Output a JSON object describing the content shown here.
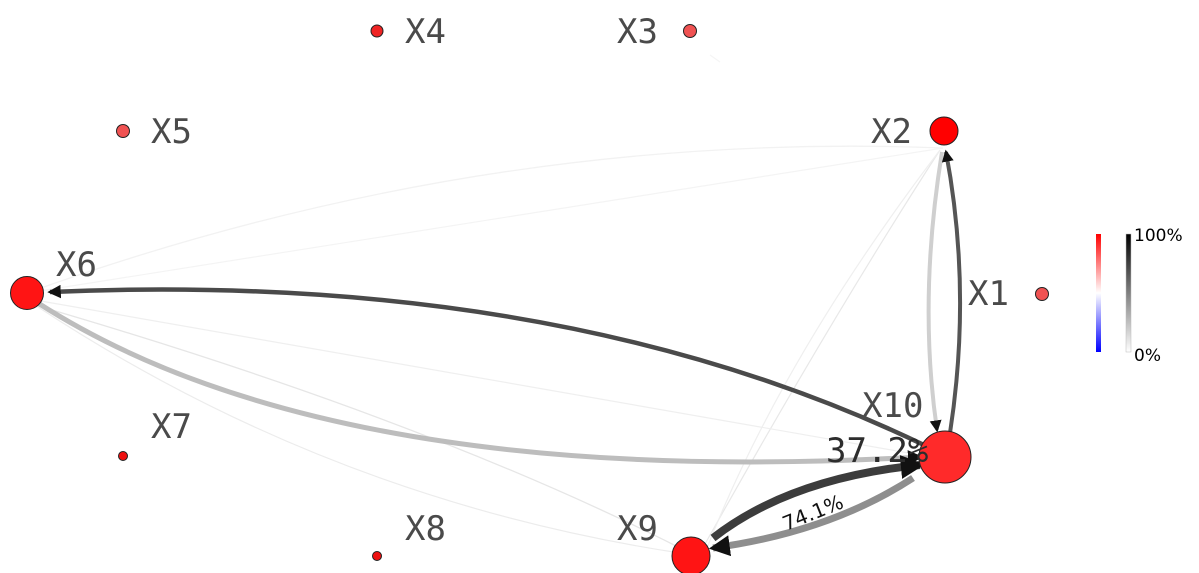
{
  "nodes": [
    {
      "id": "X1",
      "label": "X1",
      "fill": "#f05252"
    },
    {
      "id": "X2",
      "label": "X2",
      "fill": "#ff0000"
    },
    {
      "id": "X3",
      "label": "X3",
      "fill": "#f05252"
    },
    {
      "id": "X4",
      "label": "X4",
      "fill": "#f02424"
    },
    {
      "id": "X5",
      "label": "X5",
      "fill": "#f05252"
    },
    {
      "id": "X6",
      "label": "X6",
      "fill": "#ff1414"
    },
    {
      "id": "X7",
      "label": "X7",
      "fill": "#ee1010"
    },
    {
      "id": "X8",
      "label": "X8",
      "fill": "#ee1010"
    },
    {
      "id": "X9",
      "label": "X9",
      "fill": "#ff1414"
    },
    {
      "id": "X10",
      "label": "X10",
      "fill": "#ff2a2a"
    }
  ],
  "edges": [
    {
      "from": "X10",
      "to": "X2",
      "color": "#555555"
    },
    {
      "from": "X2",
      "to": "X10",
      "color": "#cfcfcf"
    },
    {
      "from": "X10",
      "to": "X6",
      "color": "#4a4a4a"
    },
    {
      "from": "X6",
      "to": "X10",
      "color": "#bdbdbd"
    },
    {
      "from": "X9",
      "to": "X10",
      "color": "#3c3c3c"
    },
    {
      "from": "X10",
      "to": "X9",
      "color": "#8e8e8e"
    },
    {
      "from": "X6",
      "to": "X2",
      "color": "#f2f2f2"
    },
    {
      "from": "X6",
      "to": "X9",
      "color": "#e6e6e6"
    },
    {
      "from": "X6",
      "to": "X9",
      "color": "#ececec"
    },
    {
      "from": "X2",
      "to": "X9",
      "color": "#e8e8e8"
    },
    {
      "from": "X2",
      "to": "X9",
      "color": "#efefef"
    }
  ],
  "edge_labels": {
    "x10_x6": "37.2%",
    "x9_x10": "74.1%"
  },
  "legend": {
    "max_label": "100%",
    "min_label": "0%",
    "node_scale_colors": [
      "#ff0000",
      "#ffffff",
      "#0000ff"
    ],
    "edge_scale_colors": [
      "#000000",
      "#ffffff"
    ]
  }
}
